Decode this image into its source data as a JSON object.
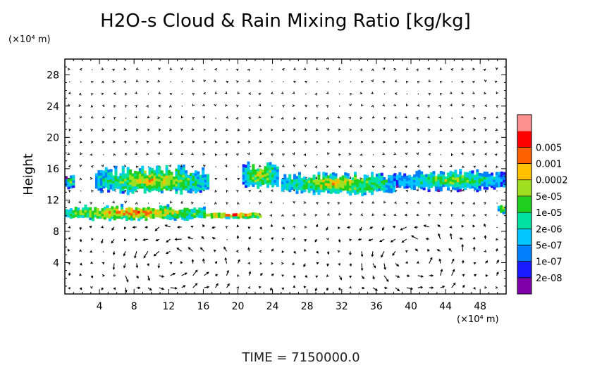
{
  "chart_data": {
    "type": "heatmap",
    "title": "H2O-s Cloud & Rain Mixing Ratio [kg/kg]",
    "ylabel": "Height",
    "y_unit": "(×10⁴ m)",
    "x_unit": "(×10⁴ m)",
    "footer": "TIME = 7150000.0",
    "xlim": [
      0,
      51
    ],
    "ylim": [
      0,
      30
    ],
    "x_ticks": [
      4,
      8,
      12,
      16,
      20,
      24,
      28,
      32,
      36,
      40,
      44,
      48
    ],
    "y_ticks": [
      4,
      8,
      12,
      16,
      20,
      24,
      28
    ],
    "colorbar": {
      "levels": [
        "2e-08",
        "1e-07",
        "5e-07",
        "2e-06",
        "1e-05",
        "5e-05",
        "0.0002",
        "0.001",
        "0.005"
      ],
      "colors": [
        "#7f00a8",
        "#1a1aff",
        "#0080ff",
        "#00c8ff",
        "#00e0a0",
        "#20d020",
        "#a0e020",
        "#ffc000",
        "#ff6000",
        "#ff0000",
        "#ff9090"
      ]
    },
    "cloud_regions": [
      {
        "x": [
          0,
          1
        ],
        "y": [
          13.2,
          15.2
        ],
        "level": 2
      },
      {
        "x": [
          3.5,
          16.5
        ],
        "y": [
          12.5,
          16.3
        ],
        "level": 3
      },
      {
        "x": [
          0,
          16
        ],
        "y": [
          9.3,
          11.2
        ],
        "level": 4
      },
      {
        "x": [
          16,
          22.5
        ],
        "y": [
          9.6,
          10.2
        ],
        "level": 5
      },
      {
        "x": [
          20.5,
          24.5
        ],
        "y": [
          13.2,
          17.0
        ],
        "level": 3
      },
      {
        "x": [
          25,
          38
        ],
        "y": [
          12.5,
          15.5
        ],
        "level": 3
      },
      {
        "x": [
          38,
          51
        ],
        "y": [
          13.0,
          15.8
        ],
        "level": 2
      },
      {
        "x": [
          50,
          51
        ],
        "y": [
          10.2,
          11.2
        ],
        "level": 3
      }
    ],
    "wind_circulations": [
      {
        "center_x": 12.5,
        "center_y": 4.0,
        "radius_x": 5.0,
        "radius_y": 3.5
      },
      {
        "center_x": 40.0,
        "center_y": 4.5,
        "radius_x": 5.5,
        "radius_y": 3.8
      }
    ]
  }
}
